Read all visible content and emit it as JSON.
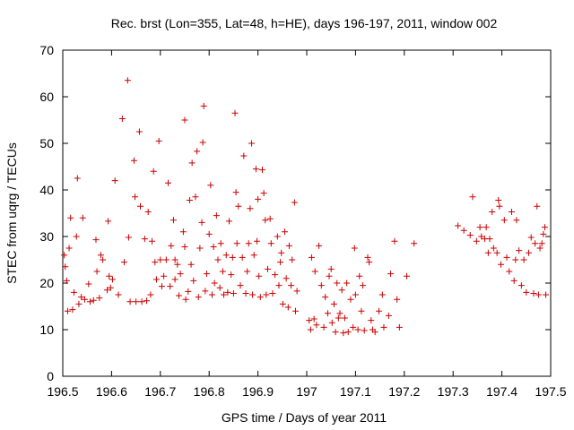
{
  "chart_data": {
    "type": "scatter",
    "title": "Rec. brst (Lon=355, Lat=48, h=HE), days 196-197, 2011, window 002",
    "xlabel": "GPS time / Days of year 2011",
    "ylabel": "STEC from uqrg / TECUs",
    "xlim": [
      196.5,
      197.5
    ],
    "ylim": [
      0,
      70
    ],
    "x_ticks": [
      196.5,
      196.6,
      196.7,
      196.8,
      196.9,
      197,
      197.1,
      197.2,
      197.3,
      197.4,
      197.5
    ],
    "x_tick_labels": [
      "196.5",
      "196.6",
      "196.7",
      "196.8",
      "196.9",
      "197",
      "197.1",
      "197.2",
      "197.3",
      "197.4",
      "197.5"
    ],
    "y_ticks": [
      0,
      10,
      20,
      30,
      40,
      50,
      60,
      70
    ],
    "y_tick_labels": [
      "0",
      "10",
      "20",
      "30",
      "40",
      "50",
      "60",
      "70"
    ],
    "grid": false,
    "marker": "plus",
    "color": "#cc0000",
    "series": [
      {
        "name": "STEC",
        "points": [
          [
            196.503,
            26
          ],
          [
            196.505,
            23.5
          ],
          [
            196.508,
            20.5
          ],
          [
            196.51,
            14
          ],
          [
            196.513,
            27.5
          ],
          [
            196.516,
            34
          ],
          [
            196.52,
            14.3
          ],
          [
            196.523,
            18
          ],
          [
            196.528,
            30
          ],
          [
            196.53,
            42.5
          ],
          [
            196.533,
            15.5
          ],
          [
            196.538,
            17
          ],
          [
            196.541,
            34
          ],
          [
            196.545,
            16.5
          ],
          [
            196.553,
            19.8
          ],
          [
            196.556,
            16
          ],
          [
            196.563,
            16.3
          ],
          [
            196.568,
            29.3
          ],
          [
            196.57,
            22.5
          ],
          [
            196.575,
            16.8
          ],
          [
            196.578,
            26
          ],
          [
            196.582,
            25
          ],
          [
            196.591,
            18.5
          ],
          [
            196.593,
            33.3
          ],
          [
            196.595,
            21.5
          ],
          [
            196.598,
            19
          ],
          [
            196.602,
            20.8
          ],
          [
            196.607,
            42
          ],
          [
            196.614,
            17.5
          ],
          [
            196.622,
            55.3
          ],
          [
            196.626,
            24.5
          ],
          [
            196.633,
            63.5
          ],
          [
            196.635,
            29.8
          ],
          [
            196.638,
            16
          ],
          [
            196.646,
            46.3
          ],
          [
            196.648,
            38.5
          ],
          [
            196.65,
            16
          ],
          [
            196.657,
            52.5
          ],
          [
            196.659,
            36.5
          ],
          [
            196.662,
            16
          ],
          [
            196.668,
            29.5
          ],
          [
            196.672,
            16.2
          ],
          [
            196.675,
            35.3
          ],
          [
            196.68,
            17.5
          ],
          [
            196.683,
            29
          ],
          [
            196.686,
            44
          ],
          [
            196.689,
            24.5
          ],
          [
            196.692,
            20.8
          ],
          [
            196.697,
            50.5
          ],
          [
            196.7,
            25
          ],
          [
            196.703,
            19.3
          ],
          [
            196.707,
            21.5
          ],
          [
            196.712,
            25
          ],
          [
            196.716,
            41.5
          ],
          [
            196.72,
            19.3
          ],
          [
            196.722,
            28
          ],
          [
            196.727,
            33.5
          ],
          [
            196.73,
            20.8
          ],
          [
            196.73,
            25
          ],
          [
            196.735,
            24
          ],
          [
            196.738,
            17.3
          ],
          [
            196.741,
            22
          ],
          [
            196.747,
            31
          ],
          [
            196.75,
            55
          ],
          [
            196.75,
            27.8
          ],
          [
            196.752,
            16.5
          ],
          [
            196.757,
            18.2
          ],
          [
            196.76,
            37.8
          ],
          [
            196.763,
            24
          ],
          [
            196.765,
            45.8
          ],
          [
            196.768,
            20.5
          ],
          [
            196.772,
            38.5
          ],
          [
            196.775,
            48.3
          ],
          [
            196.778,
            17
          ],
          [
            196.781,
            27.5
          ],
          [
            196.785,
            33
          ],
          [
            196.787,
            50.2
          ],
          [
            196.789,
            58
          ],
          [
            196.792,
            18.3
          ],
          [
            196.795,
            22
          ],
          [
            196.8,
            30.5
          ],
          [
            196.803,
            41
          ],
          [
            196.806,
            17.5
          ],
          [
            196.809,
            27.8
          ],
          [
            196.811,
            20
          ],
          [
            196.815,
            34.5
          ],
          [
            196.818,
            25
          ],
          [
            196.822,
            19
          ],
          [
            196.824,
            28.5
          ],
          [
            196.828,
            22.5
          ],
          [
            196.83,
            17.5
          ],
          [
            196.835,
            26
          ],
          [
            196.838,
            18
          ],
          [
            196.841,
            33.3
          ],
          [
            196.845,
            21.8
          ],
          [
            196.848,
            25.5
          ],
          [
            196.85,
            17.8
          ],
          [
            196.853,
            56.5
          ],
          [
            196.855,
            39.5
          ],
          [
            196.857,
            28.5
          ],
          [
            196.86,
            36.5
          ],
          [
            196.864,
            19.5
          ],
          [
            196.868,
            25.5
          ],
          [
            196.871,
            47.3
          ],
          [
            196.875,
            17.8
          ],
          [
            196.878,
            22.5
          ],
          [
            196.881,
            28.5
          ],
          [
            196.884,
            36
          ],
          [
            196.887,
            50
          ],
          [
            196.889,
            17.5
          ],
          [
            196.892,
            26
          ],
          [
            196.896,
            44.5
          ],
          [
            196.898,
            29
          ],
          [
            196.9,
            38
          ],
          [
            196.902,
            21.5
          ],
          [
            196.905,
            17
          ],
          [
            196.909,
            44.3
          ],
          [
            196.912,
            39.3
          ],
          [
            196.915,
            33.5
          ],
          [
            196.917,
            17.5
          ],
          [
            196.92,
            23
          ],
          [
            196.925,
            33.8
          ],
          [
            196.927,
            28.5
          ],
          [
            196.93,
            17.8
          ],
          [
            196.935,
            21.8
          ],
          [
            196.94,
            30
          ],
          [
            196.943,
            19.5
          ],
          [
            196.946,
            24.5
          ],
          [
            196.948,
            26.5
          ],
          [
            196.951,
            15.5
          ],
          [
            196.955,
            31
          ],
          [
            196.958,
            21
          ],
          [
            196.962,
            14.8
          ],
          [
            196.964,
            28
          ],
          [
            196.968,
            19.5
          ],
          [
            196.97,
            25
          ],
          [
            196.975,
            37.3
          ],
          [
            196.977,
            14
          ],
          [
            196.98,
            18.3
          ],
          [
            197.005,
            12
          ],
          [
            197.008,
            10
          ],
          [
            197.01,
            25.5
          ],
          [
            197.015,
            12.3
          ],
          [
            197.017,
            22.5
          ],
          [
            197.02,
            11
          ],
          [
            197.025,
            28
          ],
          [
            197.03,
            19.5
          ],
          [
            197.035,
            10.5
          ],
          [
            197.038,
            17
          ],
          [
            197.043,
            13.5
          ],
          [
            197.046,
            21.5
          ],
          [
            197.05,
            23
          ],
          [
            197.052,
            11.5
          ],
          [
            197.056,
            15.5
          ],
          [
            197.059,
            9.5
          ],
          [
            197.062,
            20
          ],
          [
            197.065,
            12.5
          ],
          [
            197.068,
            13.5
          ],
          [
            197.072,
            18.5
          ],
          [
            197.075,
            9.3
          ],
          [
            197.078,
            12.5
          ],
          [
            197.082,
            20
          ],
          [
            197.085,
            9.5
          ],
          [
            197.09,
            16.5
          ],
          [
            197.095,
            10.5
          ],
          [
            197.098,
            27.5
          ],
          [
            197.1,
            17.5
          ],
          [
            197.105,
            10
          ],
          [
            197.108,
            21.5
          ],
          [
            197.112,
            14
          ],
          [
            197.115,
            19.5
          ],
          [
            197.118,
            9.8
          ],
          [
            197.125,
            25.5
          ],
          [
            197.128,
            24.5
          ],
          [
            197.132,
            12
          ],
          [
            197.135,
            10
          ],
          [
            197.14,
            9.5
          ],
          [
            197.148,
            14
          ],
          [
            197.155,
            17.5
          ],
          [
            197.158,
            10.5
          ],
          [
            197.168,
            13
          ],
          [
            197.172,
            22
          ],
          [
            197.18,
            29
          ],
          [
            197.185,
            16.5
          ],
          [
            197.19,
            10.5
          ],
          [
            197.205,
            21.5
          ],
          [
            197.22,
            28.5
          ],
          [
            197.31,
            32.3
          ],
          [
            197.322,
            31.3
          ],
          [
            197.335,
            30.3
          ],
          [
            197.34,
            38.5
          ],
          [
            197.348,
            29
          ],
          [
            197.355,
            32
          ],
          [
            197.358,
            30
          ],
          [
            197.365,
            29.5
          ],
          [
            197.368,
            32
          ],
          [
            197.372,
            26.5
          ],
          [
            197.375,
            29.5
          ],
          [
            197.38,
            35.3
          ],
          [
            197.383,
            27.5
          ],
          [
            197.39,
            26.5
          ],
          [
            197.393,
            37.8
          ],
          [
            197.395,
            36.5
          ],
          [
            197.398,
            24
          ],
          [
            197.405,
            33.5
          ],
          [
            197.41,
            25.5
          ],
          [
            197.415,
            22.5
          ],
          [
            197.42,
            35.3
          ],
          [
            197.425,
            20.5
          ],
          [
            197.428,
            25
          ],
          [
            197.43,
            33.5
          ],
          [
            197.435,
            27
          ],
          [
            197.44,
            19.5
          ],
          [
            197.445,
            25
          ],
          [
            197.45,
            18
          ],
          [
            197.455,
            26.5
          ],
          [
            197.46,
            29.8
          ],
          [
            197.465,
            17.8
          ],
          [
            197.468,
            28.5
          ],
          [
            197.472,
            36.5
          ],
          [
            197.475,
            17.5
          ],
          [
            197.478,
            27.5
          ],
          [
            197.482,
            28.5
          ],
          [
            197.485,
            30.5
          ],
          [
            197.488,
            32
          ],
          [
            197.49,
            17.5
          ]
        ]
      }
    ]
  }
}
